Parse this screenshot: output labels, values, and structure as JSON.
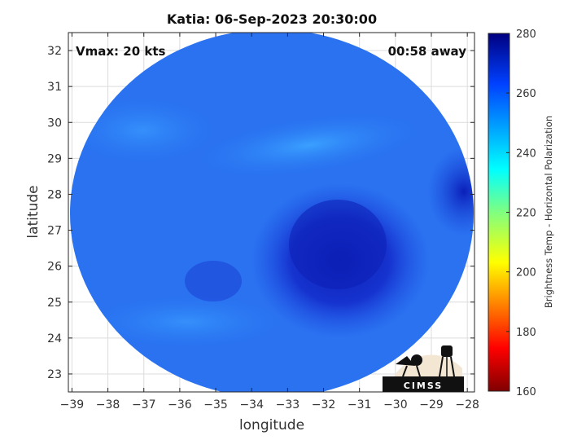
{
  "chart_data": {
    "type": "heatmap",
    "title": "Katia: 06-Sep-2023 20:30:00",
    "xlabel": "longitude",
    "ylabel": "latitude",
    "xlim": [
      -39.1,
      -27.8
    ],
    "ylim": [
      22.5,
      32.5
    ],
    "x_ticks": [
      -39,
      -38,
      -37,
      -36,
      -35,
      -34,
      -33,
      -32,
      -31,
      -30,
      -29,
      -28
    ],
    "y_ticks": [
      23,
      24,
      25,
      26,
      27,
      28,
      29,
      30,
      31,
      32
    ],
    "grid": true,
    "annotations": {
      "vmax": "Vmax: 20 kts",
      "time_offset": "00:58 away"
    },
    "colorbar": {
      "label": "Brightness Temp - Horizontal Polarization",
      "range": [
        160,
        280
      ],
      "ticks": [
        160,
        180,
        200,
        220,
        240,
        260,
        280
      ],
      "colormap": "jet",
      "placement": "right"
    },
    "field": {
      "footprint_center": [
        -33.5,
        27.5
      ],
      "footprint_radius_deg": 5.6,
      "background_value": 252,
      "features": [
        {
          "kind": "cold_core",
          "center": [
            -32.0,
            26.2
          ],
          "value": 266
        },
        {
          "kind": "warm_band",
          "center": [
            -32.5,
            29.3
          ],
          "value": 242
        },
        {
          "kind": "cold_patch",
          "center": [
            -28.3,
            28.0
          ],
          "value": 266
        }
      ]
    }
  },
  "logo": {
    "text": "CIMSS",
    "icon": "satellite-dish-and-water-tower-logo"
  },
  "colors": {
    "background": "#ffffff",
    "overlay_text": "#111111"
  }
}
